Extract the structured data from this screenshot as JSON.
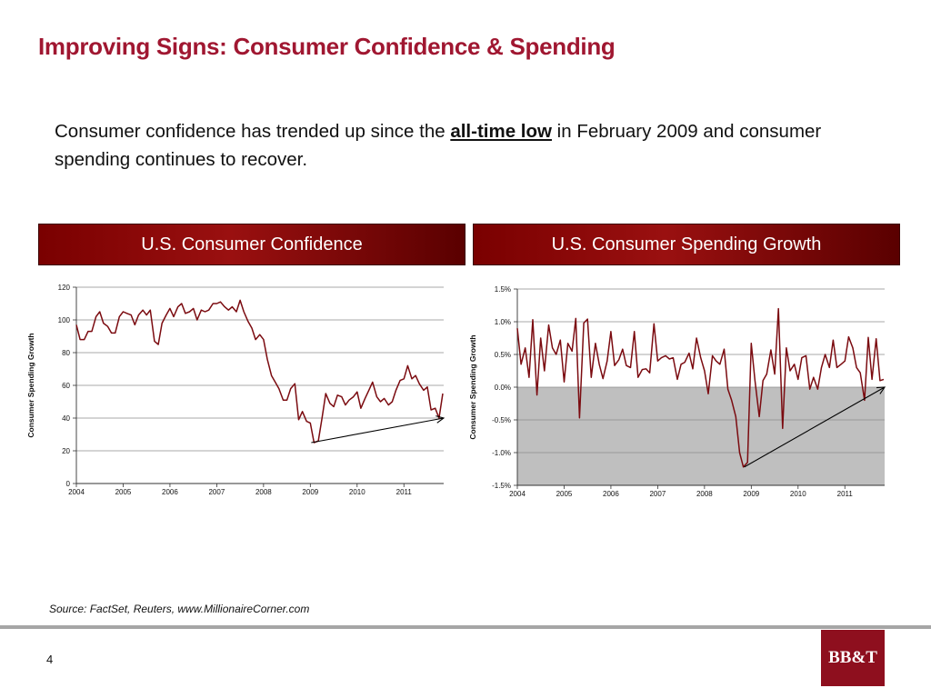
{
  "title": "Improving Signs: Consumer Confidence & Spending",
  "intro": {
    "before": "Consumer confidence has trended up since the ",
    "emphasis": "all-time low",
    "after": " in February 2009 and consumer spending continues to recover."
  },
  "colors": {
    "brand": "#a01731",
    "header": "#8b0000",
    "line": "#7b0b10",
    "shade": "#bfbfbf"
  },
  "chart_data": [
    {
      "type": "line",
      "header": "U.S. Consumer Confidence",
      "ylabel": "Consumer Spending Growth",
      "xlabel": "",
      "ylim": [
        0,
        120
      ],
      "yticks": [
        "0",
        "20",
        "40",
        "60",
        "80",
        "100",
        "120"
      ],
      "xticks": [
        "2004",
        "2005",
        "2006",
        "2007",
        "2008",
        "2009",
        "2010",
        "2011"
      ],
      "xlim": [
        2004,
        2011.85
      ],
      "grid": true,
      "series": [
        {
          "x": [
            2004.0,
            2004.08,
            2004.17,
            2004.25,
            2004.33,
            2004.42,
            2004.5,
            2004.58,
            2004.67,
            2004.75,
            2004.83,
            2004.92,
            2005.0,
            2005.08,
            2005.17,
            2005.25,
            2005.33,
            2005.42,
            2005.5,
            2005.58,
            2005.67,
            2005.75,
            2005.83,
            2005.92,
            2006.0,
            2006.08,
            2006.17,
            2006.25,
            2006.33,
            2006.42,
            2006.5,
            2006.58,
            2006.67,
            2006.75,
            2006.83,
            2006.92,
            2007.0,
            2007.08,
            2007.17,
            2007.25,
            2007.33,
            2007.42,
            2007.5,
            2007.58,
            2007.67,
            2007.75,
            2007.83,
            2007.92,
            2008.0,
            2008.08,
            2008.17,
            2008.25,
            2008.33,
            2008.42,
            2008.5,
            2008.58,
            2008.67,
            2008.75,
            2008.83,
            2008.92,
            2009.0,
            2009.08,
            2009.17,
            2009.25,
            2009.33,
            2009.42,
            2009.5,
            2009.58,
            2009.67,
            2009.75,
            2009.83,
            2009.92,
            2010.0,
            2010.08,
            2010.17,
            2010.25,
            2010.33,
            2010.42,
            2010.5,
            2010.58,
            2010.67,
            2010.75,
            2010.83,
            2010.92,
            2011.0,
            2011.08,
            2011.17,
            2011.25,
            2011.33,
            2011.42,
            2011.5,
            2011.58,
            2011.67,
            2011.75,
            2011.83
          ],
          "values": [
            97,
            88,
            88,
            93,
            93,
            102,
            105,
            98,
            96,
            92,
            92,
            102,
            105,
            104,
            103,
            97,
            103,
            106,
            103,
            106,
            87,
            85,
            98,
            103,
            107,
            102,
            108,
            110,
            104,
            105,
            107,
            100,
            106,
            105,
            106,
            110,
            110,
            111,
            108,
            106,
            108,
            105,
            112,
            105,
            99,
            95,
            88,
            91,
            88,
            76,
            66,
            62,
            58,
            51,
            51,
            58,
            61,
            39,
            44,
            38,
            37,
            25,
            26,
            40,
            55,
            49,
            47,
            54,
            53,
            48,
            51,
            53,
            56,
            46,
            52,
            57,
            62,
            53,
            50,
            52,
            48,
            50,
            57,
            63,
            64,
            72,
            64,
            66,
            61,
            57,
            59,
            45,
            46,
            40,
            55
          ]
        }
      ],
      "trend_arrow": {
        "from": [
          2009.02,
          25
        ],
        "to": [
          2011.85,
          40
        ]
      }
    },
    {
      "type": "line",
      "header": "U.S. Consumer Spending Growth",
      "ylabel": "Consumer Spending Growth",
      "xlabel": "",
      "ylim": [
        -1.5,
        1.5
      ],
      "yticks": [
        "-1.5%",
        "-1.0%",
        "-0.5%",
        "0.0%",
        "0.5%",
        "1.0%",
        "1.5%"
      ],
      "xticks": [
        "2004",
        "2005",
        "2006",
        "2007",
        "2008",
        "2009",
        "2010",
        "2011"
      ],
      "xlim": [
        2004,
        2011.85
      ],
      "grid": true,
      "negative_region_shaded": true,
      "series": [
        {
          "x": [
            2004.0,
            2004.08,
            2004.17,
            2004.25,
            2004.33,
            2004.42,
            2004.5,
            2004.58,
            2004.67,
            2004.75,
            2004.83,
            2004.92,
            2005.0,
            2005.08,
            2005.17,
            2005.25,
            2005.33,
            2005.42,
            2005.5,
            2005.58,
            2005.67,
            2005.75,
            2005.83,
            2005.92,
            2006.0,
            2006.08,
            2006.17,
            2006.25,
            2006.33,
            2006.42,
            2006.5,
            2006.58,
            2006.67,
            2006.75,
            2006.83,
            2006.92,
            2007.0,
            2007.08,
            2007.17,
            2007.25,
            2007.33,
            2007.42,
            2007.5,
            2007.58,
            2007.67,
            2007.75,
            2007.83,
            2007.92,
            2008.0,
            2008.08,
            2008.17,
            2008.25,
            2008.33,
            2008.42,
            2008.5,
            2008.58,
            2008.67,
            2008.75,
            2008.83,
            2008.92,
            2009.0,
            2009.08,
            2009.17,
            2009.25,
            2009.33,
            2009.42,
            2009.5,
            2009.58,
            2009.67,
            2009.75,
            2009.83,
            2009.92,
            2010.0,
            2010.08,
            2010.17,
            2010.25,
            2010.33,
            2010.42,
            2010.5,
            2010.58,
            2010.67,
            2010.75,
            2010.83,
            2010.92,
            2011.0,
            2011.08,
            2011.17,
            2011.25,
            2011.33,
            2011.42,
            2011.5,
            2011.58,
            2011.67,
            2011.75,
            2011.83
          ],
          "values": [
            0.9,
            0.35,
            0.6,
            0.15,
            1.03,
            -0.12,
            0.75,
            0.25,
            0.95,
            0.6,
            0.5,
            0.72,
            0.08,
            0.67,
            0.55,
            1.05,
            -0.47,
            0.98,
            1.04,
            0.15,
            0.67,
            0.35,
            0.13,
            0.4,
            0.85,
            0.33,
            0.42,
            0.58,
            0.33,
            0.3,
            0.85,
            0.15,
            0.27,
            0.28,
            0.22,
            0.97,
            0.4,
            0.45,
            0.48,
            0.43,
            0.45,
            0.12,
            0.35,
            0.38,
            0.52,
            0.28,
            0.75,
            0.45,
            0.25,
            -0.1,
            0.48,
            0.4,
            0.35,
            0.58,
            -0.03,
            -0.2,
            -0.45,
            -1.0,
            -1.22,
            -1.15,
            0.67,
            0.1,
            -0.45,
            0.1,
            0.2,
            0.57,
            0.2,
            1.2,
            -0.63,
            0.6,
            0.25,
            0.35,
            0.12,
            0.45,
            0.48,
            -0.03,
            0.15,
            -0.03,
            0.3,
            0.5,
            0.3,
            0.72,
            0.3,
            0.35,
            0.4,
            0.77,
            0.6,
            0.3,
            0.22,
            -0.2,
            0.76,
            0.12,
            0.74,
            0.1,
            0.12
          ]
        }
      ],
      "trend_arrow": {
        "from": [
          2008.85,
          -1.22
        ],
        "to": [
          2011.85,
          0.0
        ]
      }
    }
  ],
  "source": "Source: FactSet, Reuters, www.MillionaireCorner.com",
  "page_number": "4",
  "logo_text": "BB&T"
}
